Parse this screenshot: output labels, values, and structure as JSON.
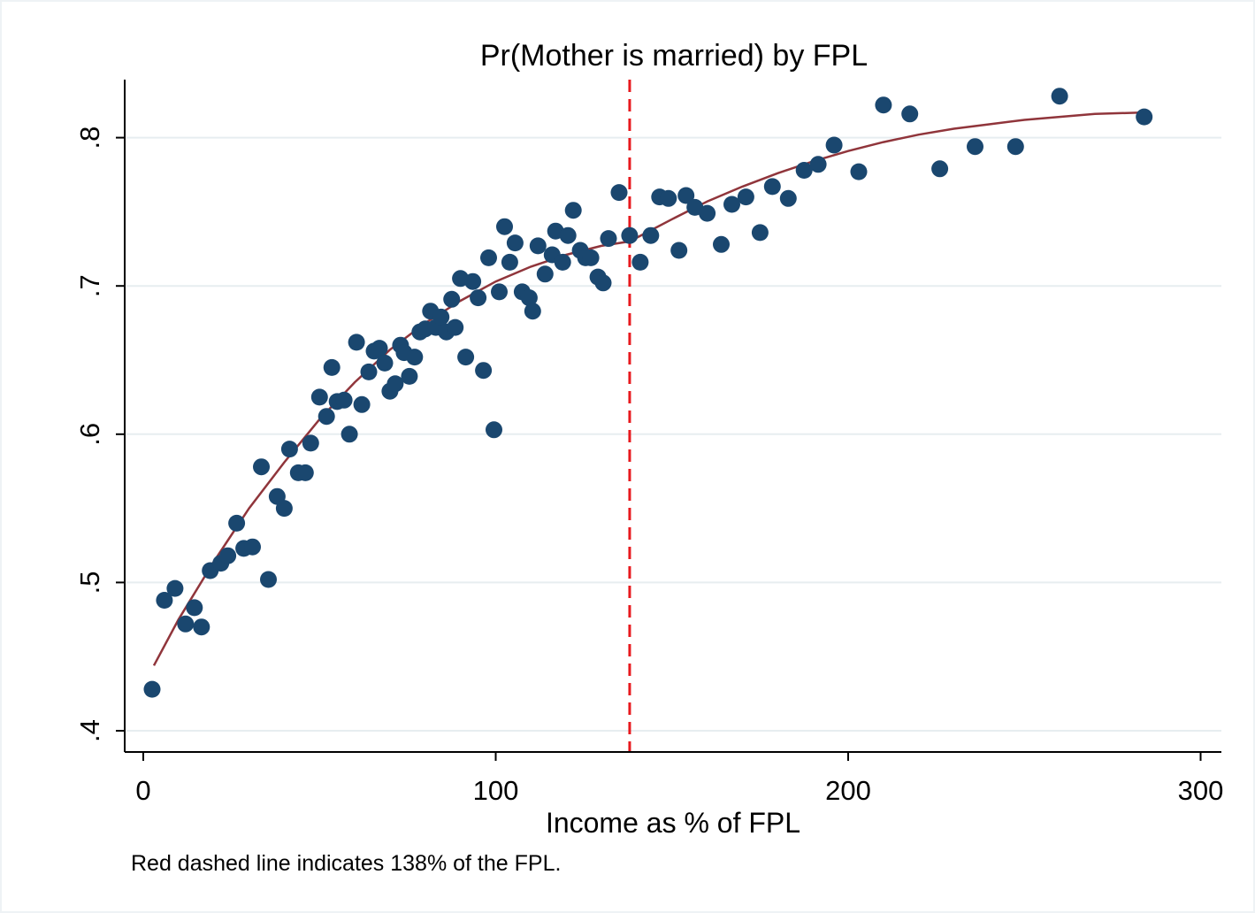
{
  "chart_data": {
    "type": "scatter",
    "title": "Pr(Mother is married) by FPL",
    "xlabel": "Income as % of FPL",
    "ylabel": "",
    "note": "Red dashed line indicates 138% of the FPL.",
    "xlim": [
      -5,
      305
    ],
    "ylim": [
      0.4,
      0.84
    ],
    "x_ticks": [
      0,
      100,
      200,
      300
    ],
    "x_tick_labels": [
      "0",
      "100",
      "200",
      "300"
    ],
    "y_ticks": [
      0.4,
      0.5,
      0.6,
      0.7,
      0.8
    ],
    "y_tick_labels": [
      ".4",
      ".5",
      ".6",
      ".7",
      ".8"
    ],
    "grid": "horizontal",
    "reference_line": {
      "x": 138,
      "style": "dashed",
      "color": "#e8191e"
    },
    "colors": {
      "points": "#1a476f",
      "fit": "#90353b",
      "reference": "#e8191e",
      "grid": "#e7edf0"
    },
    "series": [
      {
        "type": "scatter",
        "points": [
          [
            2.5,
            0.428
          ],
          [
            6,
            0.488
          ],
          [
            9,
            0.496
          ],
          [
            12,
            0.472
          ],
          [
            14.5,
            0.483
          ],
          [
            16.5,
            0.47
          ],
          [
            19,
            0.508
          ],
          [
            22,
            0.513
          ],
          [
            24,
            0.518
          ],
          [
            26.5,
            0.54
          ],
          [
            28.5,
            0.523
          ],
          [
            31,
            0.524
          ],
          [
            33.5,
            0.578
          ],
          [
            35.5,
            0.502
          ],
          [
            38,
            0.558
          ],
          [
            40,
            0.55
          ],
          [
            41.5,
            0.59
          ],
          [
            44,
            0.574
          ],
          [
            46,
            0.574
          ],
          [
            47.5,
            0.594
          ],
          [
            50,
            0.625
          ],
          [
            52,
            0.612
          ],
          [
            53.5,
            0.645
          ],
          [
            55,
            0.622
          ],
          [
            57,
            0.623
          ],
          [
            58.5,
            0.6
          ],
          [
            60.5,
            0.662
          ],
          [
            62,
            0.62
          ],
          [
            64,
            0.642
          ],
          [
            65.5,
            0.656
          ],
          [
            67,
            0.658
          ],
          [
            68.5,
            0.648
          ],
          [
            70,
            0.629
          ],
          [
            71.5,
            0.634
          ],
          [
            73,
            0.66
          ],
          [
            74,
            0.655
          ],
          [
            75.5,
            0.639
          ],
          [
            77,
            0.652
          ],
          [
            78.5,
            0.669
          ],
          [
            80,
            0.671
          ],
          [
            81.5,
            0.683
          ],
          [
            83,
            0.672
          ],
          [
            84.5,
            0.679
          ],
          [
            86,
            0.669
          ],
          [
            87.5,
            0.691
          ],
          [
            88.5,
            0.672
          ],
          [
            90,
            0.705
          ],
          [
            91.5,
            0.652
          ],
          [
            93.5,
            0.703
          ],
          [
            95,
            0.692
          ],
          [
            96.5,
            0.643
          ],
          [
            98,
            0.719
          ],
          [
            99.5,
            0.603
          ],
          [
            101,
            0.696
          ],
          [
            102.5,
            0.74
          ],
          [
            104,
            0.716
          ],
          [
            105.5,
            0.729
          ],
          [
            107.5,
            0.696
          ],
          [
            109.5,
            0.692
          ],
          [
            110.5,
            0.683
          ],
          [
            112,
            0.727
          ],
          [
            114,
            0.708
          ],
          [
            116,
            0.721
          ],
          [
            117,
            0.737
          ],
          [
            119,
            0.716
          ],
          [
            120.5,
            0.734
          ],
          [
            122,
            0.751
          ],
          [
            124,
            0.724
          ],
          [
            125.5,
            0.719
          ],
          [
            127,
            0.719
          ],
          [
            129,
            0.706
          ],
          [
            130.5,
            0.702
          ],
          [
            132,
            0.732
          ],
          [
            135,
            0.763
          ],
          [
            138,
            0.734
          ],
          [
            141,
            0.716
          ],
          [
            144,
            0.734
          ],
          [
            146.5,
            0.76
          ],
          [
            149,
            0.759
          ],
          [
            152,
            0.724
          ],
          [
            154,
            0.761
          ],
          [
            156.5,
            0.753
          ],
          [
            160,
            0.749
          ],
          [
            164,
            0.728
          ],
          [
            167,
            0.755
          ],
          [
            171,
            0.76
          ],
          [
            175,
            0.736
          ],
          [
            178.5,
            0.767
          ],
          [
            183,
            0.759
          ],
          [
            187.5,
            0.778
          ],
          [
            191.5,
            0.782
          ],
          [
            196,
            0.795
          ],
          [
            203,
            0.777
          ],
          [
            210,
            0.822
          ],
          [
            217.5,
            0.816
          ],
          [
            226,
            0.779
          ],
          [
            236,
            0.794
          ],
          [
            247.5,
            0.794
          ],
          [
            260,
            0.828
          ],
          [
            284,
            0.814
          ]
        ]
      },
      {
        "type": "line",
        "points": [
          [
            3,
            0.444
          ],
          [
            10,
            0.475
          ],
          [
            20,
            0.514
          ],
          [
            30,
            0.55
          ],
          [
            40,
            0.581
          ],
          [
            50,
            0.61
          ],
          [
            60,
            0.635
          ],
          [
            70,
            0.657
          ],
          [
            80,
            0.675
          ],
          [
            90,
            0.69
          ],
          [
            100,
            0.703
          ],
          [
            110,
            0.713
          ],
          [
            120,
            0.721
          ],
          [
            130,
            0.727
          ],
          [
            138,
            0.73
          ],
          [
            150,
            0.745
          ],
          [
            160,
            0.757
          ],
          [
            170,
            0.767
          ],
          [
            180,
            0.776
          ],
          [
            190,
            0.784
          ],
          [
            200,
            0.791
          ],
          [
            210,
            0.797
          ],
          [
            220,
            0.802
          ],
          [
            230,
            0.806
          ],
          [
            240,
            0.809
          ],
          [
            250,
            0.812
          ],
          [
            260,
            0.814
          ],
          [
            270,
            0.816
          ],
          [
            284,
            0.817
          ]
        ]
      }
    ]
  }
}
